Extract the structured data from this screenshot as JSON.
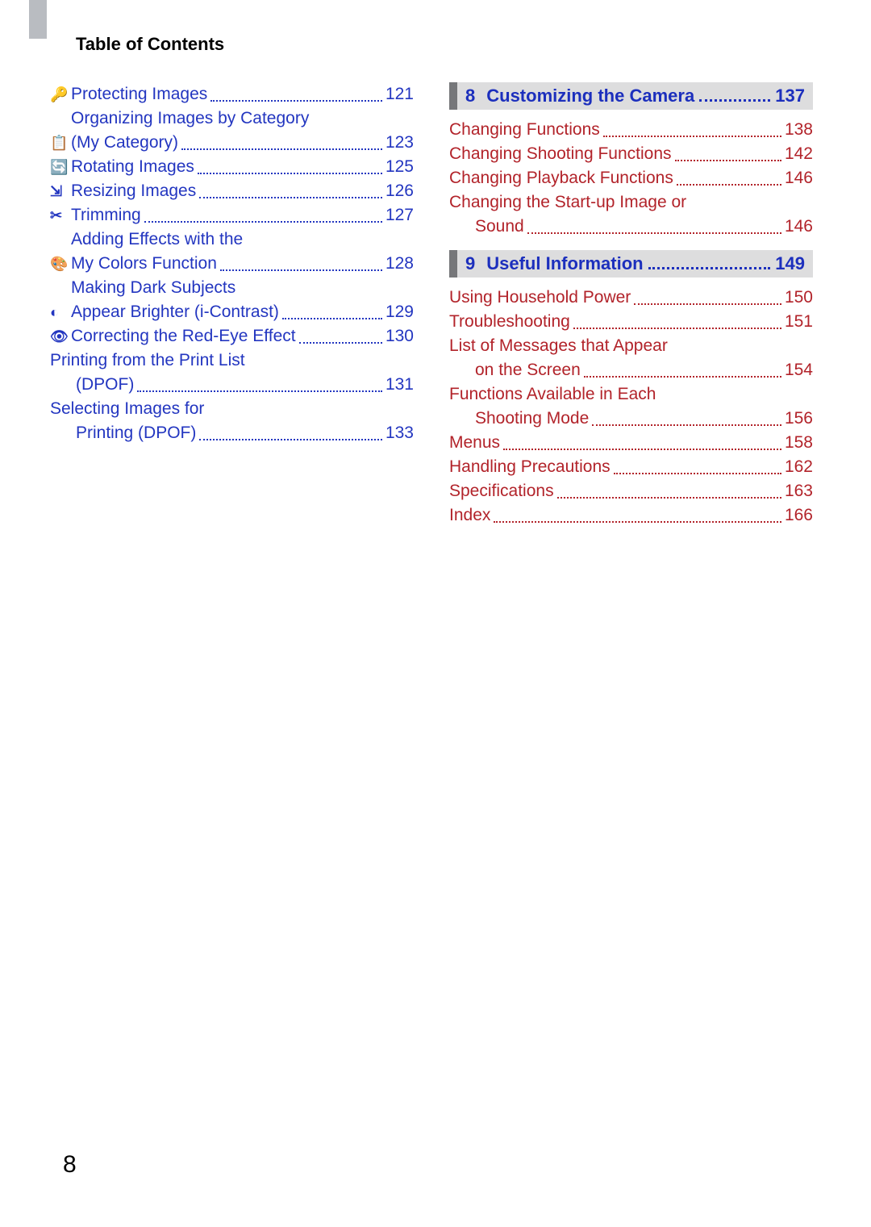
{
  "colors": {
    "link_blue": "#2336c0",
    "entry_red": "#b2232a",
    "chapter_bg": "#ddddde",
    "chapter_bar": "#76777a",
    "tab_gray": "#b9bcc1"
  },
  "header": {
    "title": "Table of Contents"
  },
  "page_number": "8",
  "left_column": {
    "entries": [
      {
        "icon": "🔑",
        "icon_name": "key-icon",
        "label": "Protecting Images",
        "page": "121",
        "color": "link"
      },
      {
        "icon": "📋",
        "icon_name": "category-icon",
        "line1": "Organizing Images by Category",
        "line2": "(My Category)",
        "page": "123",
        "color": "link"
      },
      {
        "icon": "🔄",
        "icon_name": "rotate-icon",
        "label": "Rotating Images",
        "page": "125",
        "color": "link"
      },
      {
        "icon": "⇲",
        "icon_name": "resize-icon",
        "label": "Resizing Images",
        "page": "126",
        "color": "link"
      },
      {
        "icon": "✂",
        "icon_name": "trim-icon",
        "label": "Trimming",
        "page": "127",
        "color": "link"
      },
      {
        "icon": "🎨",
        "icon_name": "effects-icon",
        "line1": "Adding Effects with the",
        "line2": "My Colors Function",
        "page": "128",
        "color": "link"
      },
      {
        "icon": "◐",
        "icon_name": "contrast-icon",
        "line1": "Making Dark Subjects",
        "line2": "Appear Brighter (i-Contrast)",
        "page": "129",
        "color": "link"
      },
      {
        "icon": "👁",
        "icon_name": "redeye-icon",
        "label": "Correcting the Red-Eye Effect",
        "page": "130",
        "color": "link"
      },
      {
        "line1": "Printing from the Print List",
        "line2": "(DPOF)",
        "page": "131",
        "color": "link",
        "no_icon": true
      },
      {
        "line1": "Selecting Images for",
        "line2": "Printing (DPOF)",
        "page": "133",
        "color": "link",
        "no_icon": true
      }
    ]
  },
  "right_column": {
    "sections": [
      {
        "chapter_num": "8",
        "chapter_title": "Customizing the Camera",
        "chapter_page": "137",
        "entries": [
          {
            "label": "Changing Functions",
            "page": "138",
            "color": "red"
          },
          {
            "label": "Changing Shooting Functions",
            "page": "142",
            "color": "red"
          },
          {
            "label": "Changing Playback Functions",
            "page": "146",
            "color": "red"
          },
          {
            "line1": "Changing the Start-up Image or",
            "line2": "Sound",
            "page": "146",
            "color": "red"
          }
        ]
      },
      {
        "chapter_num": "9",
        "chapter_title": "Useful Information",
        "chapter_page": "149",
        "entries": [
          {
            "label": "Using Household Power",
            "page": "150",
            "color": "red"
          },
          {
            "label": "Troubleshooting",
            "page": "151",
            "color": "red"
          },
          {
            "line1": "List of Messages that Appear",
            "line2": "on the Screen",
            "page": "154",
            "color": "red"
          },
          {
            "line1": "Functions Available in Each",
            "line2": "Shooting Mode",
            "page": "156",
            "color": "red"
          },
          {
            "label": "Menus",
            "page": "158",
            "color": "red"
          },
          {
            "label": "Handling Precautions",
            "page": "162",
            "color": "red"
          },
          {
            "label": "Specifications",
            "page": "163",
            "color": "red"
          },
          {
            "label": "Index",
            "page": "166",
            "color": "red"
          }
        ]
      }
    ]
  }
}
